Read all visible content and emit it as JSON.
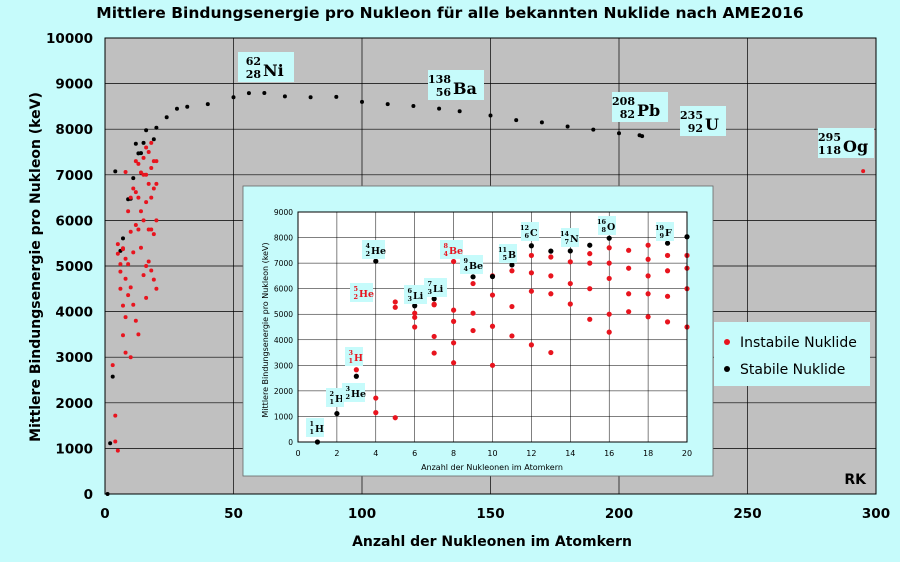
{
  "chart_data": {
    "type": "scatter",
    "title": "Mittlere Bindungsenergie pro Nukleon für alle bekannten Nuklide nach AME2016",
    "xlabel": "Anzahl der Nukleonen im Atomkern",
    "ylabel": "Mittlere Bindungsenergie pro Nukleon (keV)",
    "xlim": [
      0,
      300
    ],
    "ylim": [
      0,
      10000
    ],
    "xticks": [
      "0",
      "50",
      "100",
      "150",
      "200",
      "250",
      "300"
    ],
    "yticks": [
      "0",
      "1000",
      "2000",
      "3000",
      "4000",
      "5000",
      "6000",
      "7000",
      "8000",
      "9000",
      "10000"
    ],
    "grid": true,
    "plot_background": "#c0c0c0",
    "page_background": "#c6fbfb",
    "signature": "RK",
    "legend": {
      "placement": "right",
      "entries": [
        {
          "label": "Instabile Nuklide",
          "color": "#e8141e"
        },
        {
          "label": "Stabile Nuklide",
          "color": "#000000"
        }
      ]
    },
    "series": [
      {
        "name": "Stabile Nuklide",
        "color": "#000000",
        "points": [
          [
            1,
            0
          ],
          [
            2,
            1112
          ],
          [
            3,
            2573
          ],
          [
            4,
            7074
          ],
          [
            6,
            5332
          ],
          [
            7,
            5606
          ],
          [
            9,
            6463
          ],
          [
            10,
            6475
          ],
          [
            11,
            6928
          ],
          [
            12,
            7680
          ],
          [
            13,
            7470
          ],
          [
            14,
            7476
          ],
          [
            15,
            7700
          ],
          [
            16,
            7976
          ],
          [
            19,
            7779
          ],
          [
            20,
            8032
          ],
          [
            24,
            8261
          ],
          [
            28,
            8448
          ],
          [
            32,
            8493
          ],
          [
            40,
            8551
          ],
          [
            50,
            8700
          ],
          [
            56,
            8790
          ],
          [
            62,
            8795
          ],
          [
            70,
            8720
          ],
          [
            80,
            8700
          ],
          [
            90,
            8710
          ],
          [
            100,
            8600
          ],
          [
            110,
            8550
          ],
          [
            120,
            8510
          ],
          [
            130,
            8450
          ],
          [
            138,
            8393
          ],
          [
            150,
            8300
          ],
          [
            160,
            8200
          ],
          [
            170,
            8150
          ],
          [
            180,
            8060
          ],
          [
            190,
            7990
          ],
          [
            200,
            7910
          ],
          [
            208,
            7868
          ],
          [
            209,
            7848
          ]
        ]
      },
      {
        "name": "Instabile Nuklide",
        "color": "#e8141e",
        "points": [
          [
            3,
            2827
          ],
          [
            4,
            1720
          ],
          [
            4,
            1150
          ],
          [
            5,
            5270
          ],
          [
            5,
            5480
          ],
          [
            5,
            950
          ],
          [
            6,
            4878
          ],
          [
            6,
            5040
          ],
          [
            6,
            4500
          ],
          [
            7,
            5371
          ],
          [
            7,
            4130
          ],
          [
            7,
            3480
          ],
          [
            7,
            5390
          ],
          [
            8,
            7062
          ],
          [
            8,
            5160
          ],
          [
            8,
            4720
          ],
          [
            8,
            3880
          ],
          [
            8,
            3100
          ],
          [
            9,
            6200
          ],
          [
            9,
            5040
          ],
          [
            9,
            4360
          ],
          [
            10,
            6500
          ],
          [
            10,
            5750
          ],
          [
            10,
            4530
          ],
          [
            10,
            3000
          ],
          [
            11,
            6700
          ],
          [
            11,
            5300
          ],
          [
            11,
            4150
          ],
          [
            12,
            7300
          ],
          [
            12,
            6620
          ],
          [
            12,
            5900
          ],
          [
            12,
            3800
          ],
          [
            13,
            7240
          ],
          [
            13,
            6500
          ],
          [
            13,
            5800
          ],
          [
            13,
            3500
          ],
          [
            14,
            7050
          ],
          [
            14,
            6200
          ],
          [
            14,
            5400
          ],
          [
            15,
            7370
          ],
          [
            15,
            7000
          ],
          [
            15,
            6000
          ],
          [
            15,
            4800
          ],
          [
            16,
            7600
          ],
          [
            16,
            7000
          ],
          [
            16,
            6400
          ],
          [
            16,
            5000
          ],
          [
            16,
            4300
          ],
          [
            17,
            7500
          ],
          [
            17,
            6800
          ],
          [
            17,
            5800
          ],
          [
            17,
            5100
          ],
          [
            18,
            7700
          ],
          [
            18,
            7150
          ],
          [
            18,
            6500
          ],
          [
            18,
            5800
          ],
          [
            18,
            4900
          ],
          [
            19,
            7300
          ],
          [
            19,
            6700
          ],
          [
            19,
            5700
          ],
          [
            19,
            4700
          ],
          [
            20,
            7300
          ],
          [
            20,
            6800
          ],
          [
            20,
            6000
          ],
          [
            20,
            4500
          ],
          [
            295,
            7080
          ]
        ]
      }
    ],
    "labeled_nuclides": [
      {
        "A": 62,
        "mass": "62",
        "charge": "28",
        "symbol": "Ni"
      },
      {
        "A": 138,
        "mass": "138",
        "charge": "56",
        "symbol": "Ba"
      },
      {
        "A": 208,
        "mass": "208",
        "charge": "82",
        "symbol": "Pb"
      },
      {
        "A": 235,
        "mass": "235",
        "charge": "92",
        "symbol": "U"
      },
      {
        "A": 295,
        "mass": "295",
        "charge": "118",
        "symbol": "Og"
      }
    ],
    "inset": {
      "type": "scatter",
      "xlabel": "Anzahl der Nukleonen im Atomkern",
      "ylabel": "Mittlere Bindungsenergie pro Nukleon (keV)",
      "xlim": [
        0,
        20
      ],
      "ylim": [
        0,
        9000
      ],
      "xticks": [
        "0",
        "2",
        "4",
        "6",
        "8",
        "10",
        "12",
        "14",
        "16",
        "18",
        "20"
      ],
      "yticks": [
        "0",
        "1000",
        "2000",
        "3000",
        "4000",
        "5000",
        "6000",
        "7000",
        "8000",
        "9000"
      ],
      "grid": true,
      "plot_background": "#ffffff",
      "labeled_nuclides": [
        {
          "A": 1,
          "E": 0,
          "mass": "1",
          "charge": "1",
          "symbol": "H",
          "stable": true
        },
        {
          "A": 2,
          "E": 1112,
          "mass": "2",
          "charge": "1",
          "symbol": "H",
          "stable": true
        },
        {
          "A": 3,
          "E": 2827,
          "mass": "3",
          "charge": "1",
          "symbol": "H",
          "stable": false
        },
        {
          "A": 3,
          "E": 2573,
          "mass": "3",
          "charge": "2",
          "symbol": "He",
          "stable": true
        },
        {
          "A": 4,
          "E": 7074,
          "mass": "4",
          "charge": "2",
          "symbol": "He",
          "stable": true
        },
        {
          "A": 5,
          "E": 5480,
          "mass": "5",
          "charge": "2",
          "symbol": "He",
          "stable": false
        },
        {
          "A": 6,
          "E": 5332,
          "mass": "6",
          "charge": "3",
          "symbol": "Li",
          "stable": true
        },
        {
          "A": 7,
          "E": 5606,
          "mass": "7",
          "charge": "3",
          "symbol": "Li",
          "stable": true
        },
        {
          "A": 8,
          "E": 7062,
          "mass": "8",
          "charge": "4",
          "symbol": "Be",
          "stable": false
        },
        {
          "A": 9,
          "E": 6463,
          "mass": "9",
          "charge": "4",
          "symbol": "Be",
          "stable": true
        },
        {
          "A": 11,
          "E": 6928,
          "mass": "11",
          "charge": "5",
          "symbol": "B",
          "stable": true
        },
        {
          "A": 12,
          "E": 7680,
          "mass": "12",
          "charge": "6",
          "symbol": "C",
          "stable": true
        },
        {
          "A": 14,
          "E": 7476,
          "mass": "14",
          "charge": "7",
          "symbol": "N",
          "stable": true
        },
        {
          "A": 16,
          "E": 7976,
          "mass": "16",
          "charge": "8",
          "symbol": "O",
          "stable": true
        },
        {
          "A": 19,
          "E": 7779,
          "mass": "19",
          "charge": "9",
          "symbol": "F",
          "stable": true
        }
      ]
    }
  }
}
